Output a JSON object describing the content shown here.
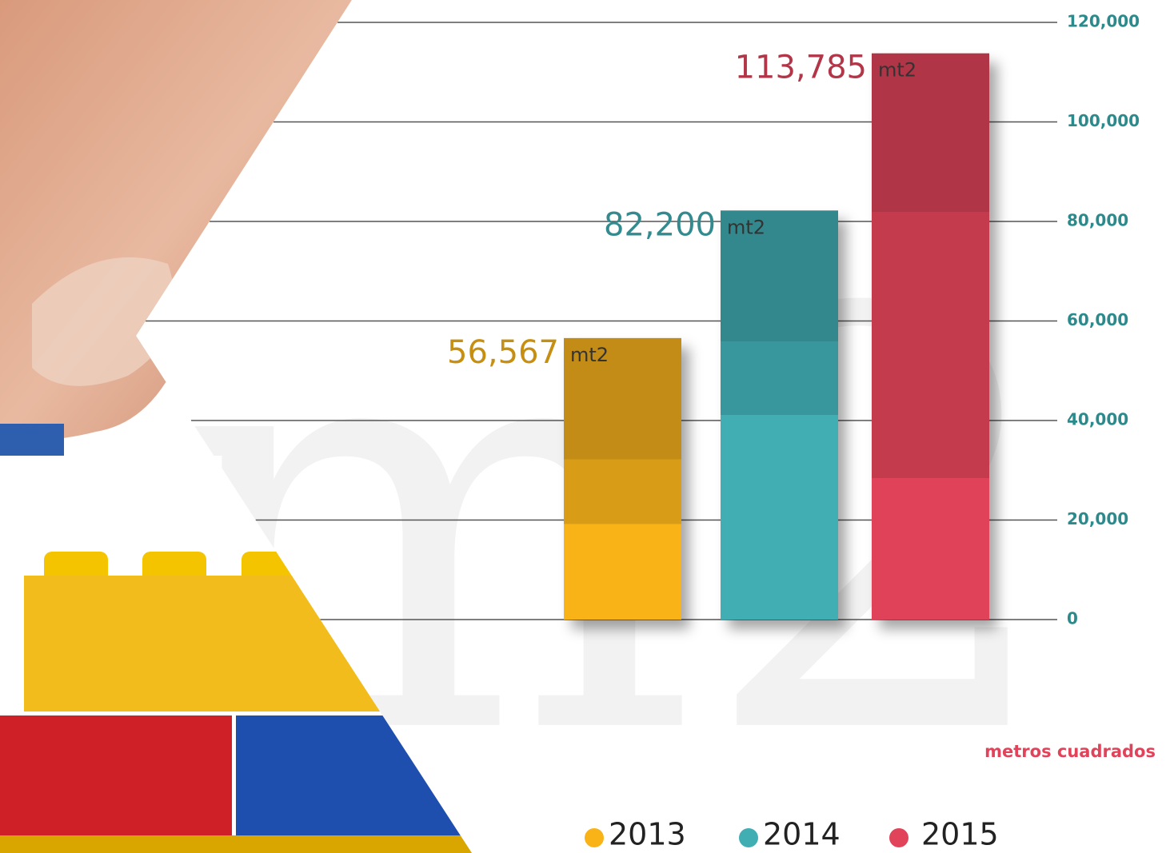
{
  "chart_data": {
    "type": "bar",
    "categories": [
      "2013",
      "2014",
      "2015"
    ],
    "values": [
      56567,
      82200,
      113785
    ],
    "value_labels": [
      "56,567",
      "82,200",
      "113,785"
    ],
    "colors": [
      "#f9b317",
      "#41aeb3",
      "#e0435a"
    ],
    "unit": "mt2",
    "axis_label": "metros cuadrados",
    "watermark": "m2",
    "ylim": [
      0,
      120000
    ],
    "yticks": [
      0,
      {
        "value": 20000,
        "label": "20,000"
      },
      {
        "value": 40000,
        "label": "40,000"
      },
      {
        "value": 60000,
        "label": "60,000"
      },
      {
        "value": 80000,
        "label": "80,000"
      },
      {
        "value": 100000,
        "label": "100,000"
      },
      {
        "value": 120000,
        "label": "120,000"
      }
    ],
    "grid": true
  }
}
